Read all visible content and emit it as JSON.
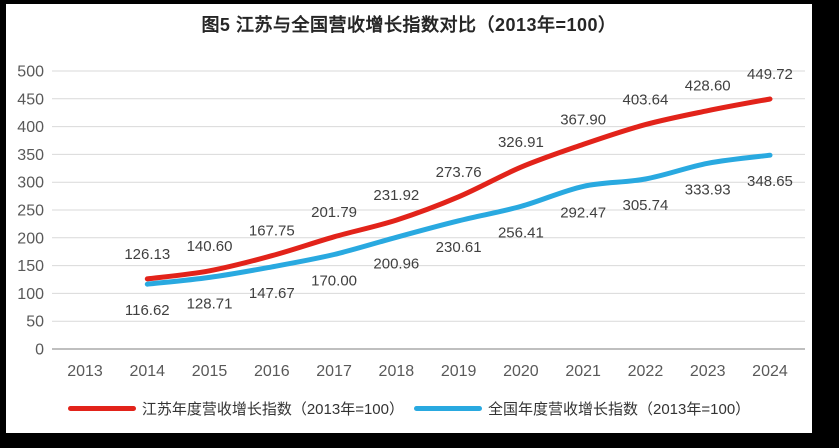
{
  "frame": {
    "border_color": "#000000",
    "canvas_background": "#ffffff"
  },
  "chart_data": {
    "type": "line",
    "title": "图5  江苏与全国营收增长指数对比（2013年=100）",
    "categories": [
      "2013",
      "2014",
      "2015",
      "2016",
      "2017",
      "2018",
      "2019",
      "2020",
      "2021",
      "2022",
      "2023",
      "2024"
    ],
    "ylim": [
      0,
      500
    ],
    "ytick_step": 50,
    "ytick_labels": [
      "0",
      "50",
      "100",
      "150",
      "200",
      "250",
      "300",
      "350",
      "400",
      "450",
      "500"
    ],
    "grid": "horizontal-only",
    "legend_position": "bottom",
    "value_decimals": 2,
    "colors": {
      "axis_label": "#595959",
      "gridline": "#d9d9d9",
      "zero_line": "#bfbfbf",
      "data_label": "#404040"
    },
    "series": [
      {
        "name": "江苏年度营收增长指数（2013年=100）",
        "color": "#e2231a",
        "start_category": "2014",
        "label_position": "above",
        "values": [
          126.13,
          140.6,
          167.75,
          201.79,
          231.92,
          273.76,
          326.91,
          367.9,
          403.64,
          428.6,
          449.72
        ]
      },
      {
        "name": "全国年度营收增长指数（2013年=100）",
        "color": "#29a9e0",
        "start_category": "2014",
        "label_position": "below",
        "values": [
          116.62,
          128.71,
          147.67,
          170.0,
          200.96,
          230.61,
          256.41,
          292.47,
          305.74,
          333.93,
          348.65
        ]
      }
    ]
  }
}
